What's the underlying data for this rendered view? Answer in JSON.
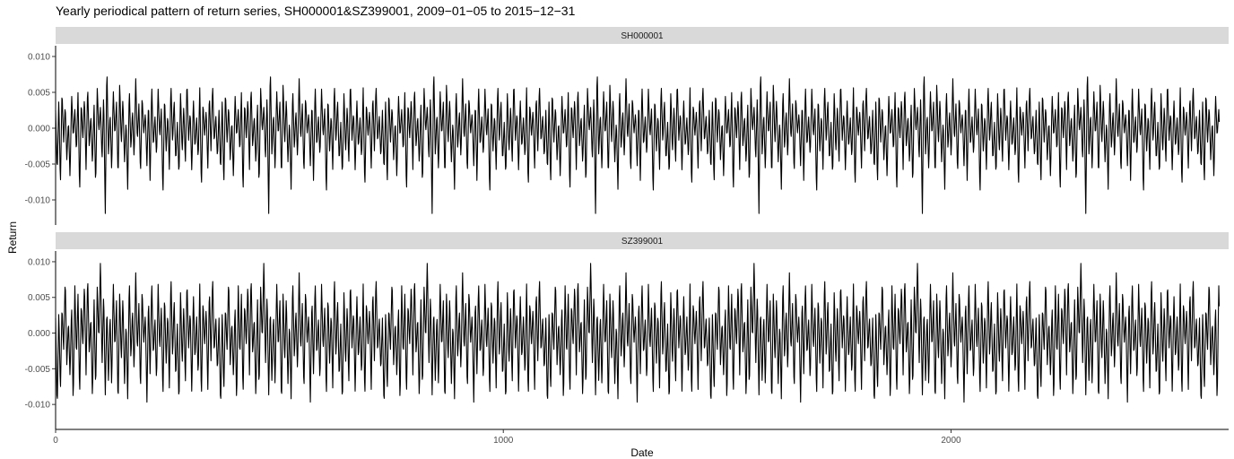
{
  "chart_data": {
    "type": "line",
    "title": "Yearly periodical pattern of return series, SH000001&SZ399001, 2009−01−05 to 2015−12−31",
    "xlabel": "Date",
    "ylabel": "Return",
    "x_range": [
      0,
      2620
    ],
    "x_ticks": [
      0,
      1000,
      2000
    ],
    "x_tick_labels": [
      "0",
      "1000",
      "2000"
    ],
    "period": 365,
    "n_points": 2600,
    "grid": false,
    "line_color": "#000000",
    "strip_color": "#d9d9d9",
    "panels": [
      {
        "name": "SH000001",
        "ylim": [
          -0.0135,
          0.0115
        ],
        "y_ticks": [
          0.01,
          0.005,
          0.0,
          -0.005,
          -0.01
        ],
        "y_tick_labels": [
          "0.010",
          "0.005",
          "0.000",
          "-0.005",
          "-0.010"
        ],
        "annual_cycle_values": [
          0.0025,
          -0.0063,
          0.0041,
          -0.0082,
          0.0054,
          -0.0021,
          0.0033,
          -0.0045,
          0.0012,
          -0.0071,
          0.0048,
          -0.0013,
          0.0027,
          -0.0035,
          0.0052,
          -0.0094,
          0.0038,
          -0.0016,
          0.0044,
          -0.0058,
          0.0061,
          -0.0028,
          0.0019,
          -0.0052,
          0.0036,
          -0.0084,
          0.0057,
          -0.0006,
          0.0031,
          -0.0046,
          0.0049,
          -0.0123,
          0.0089,
          -0.0039,
          0.0023,
          -0.0061,
          0.0054,
          -0.0011,
          0.0037,
          -0.0072,
          0.0065,
          -0.0024,
          0.0043,
          -0.0049,
          0.0012,
          -0.0086,
          0.0058,
          -0.0031,
          0.0026,
          -0.0044,
          0.0071,
          -0.0019,
          0.0035,
          -0.0067,
          0.0046,
          -0.0008,
          0.0022,
          -0.0053,
          0.0039,
          -0.0077,
          0.0062,
          -0.0027,
          0.0018,
          -0.0041,
          0.0055,
          -0.0014,
          0.0029,
          -0.0096,
          0.0047,
          -0.0033,
          0.0021,
          -0.0059,
          0.0064,
          -0.0022,
          0.0041,
          -0.0048,
          0.0009,
          -0.0069,
          0.0052,
          -0.0036,
          0.0033,
          -0.0051,
          0.0068,
          -0.0017,
          0.0024,
          -0.0062,
          0.0043,
          -0.0029,
          0.0016,
          -0.0045,
          0.0058,
          -0.0088,
          0.0037,
          -0.0012,
          0.0026,
          -0.0057,
          0.0049,
          -0.0034,
          0.0063,
          -0.0021,
          0.0019,
          -0.0043
        ]
      },
      {
        "name": "SZ399001",
        "ylim": [
          -0.0135,
          0.0115
        ],
        "y_ticks": [
          0.01,
          0.005,
          0.0,
          -0.005,
          -0.01
        ],
        "y_tick_labels": [
          "0.010",
          "0.005",
          "0.000",
          "-0.005",
          "-0.010"
        ],
        "annual_cycle_values": [
          0.0021,
          -0.0108,
          0.0032,
          -0.0084,
          0.0039,
          -0.0026,
          0.0078,
          -0.0046,
          0.0018,
          -0.0063,
          0.0041,
          -0.0102,
          0.0068,
          -0.0035,
          0.0057,
          -0.0091,
          0.0044,
          -0.0019,
          0.0072,
          -0.0059,
          0.0083,
          -0.0031,
          0.0024,
          -0.0095,
          0.0051,
          -0.0082,
          0.0066,
          -0.0012,
          0.0104,
          -0.0048,
          0.0058,
          -0.0089,
          0.0037,
          -0.0069,
          0.0029,
          -0.0077,
          0.0073,
          -0.0023,
          0.0046,
          -0.0105,
          0.0061,
          -0.0042,
          0.0053,
          -0.0074,
          0.0017,
          -0.0093,
          0.0079,
          -0.0038,
          0.0034,
          -0.0056,
          0.0087,
          -0.0028,
          0.0043,
          -0.0085,
          0.0064,
          -0.0015,
          0.0027,
          -0.0098,
          0.0052,
          -0.0061,
          0.0075,
          -0.0033,
          0.0022,
          -0.0071,
          0.0069,
          -0.0026,
          0.0038,
          -0.0092,
          0.0056,
          -0.0044,
          0.0031,
          -0.0079,
          0.0084,
          -0.0037,
          0.0049,
          -0.0066,
          0.0014,
          -0.0103,
          0.0062,
          -0.0047,
          0.0041,
          -0.0073,
          0.0076,
          -0.0021,
          0.0033,
          -0.0087,
          0.0058,
          -0.0039,
          0.0025,
          -0.0064,
          0.0071,
          -0.0096,
          0.0047,
          -0.0018,
          0.0036,
          -0.0081,
          0.0065,
          -0.0042,
          0.0082,
          -0.0029,
          0.0023,
          -0.0055
        ]
      }
    ]
  }
}
